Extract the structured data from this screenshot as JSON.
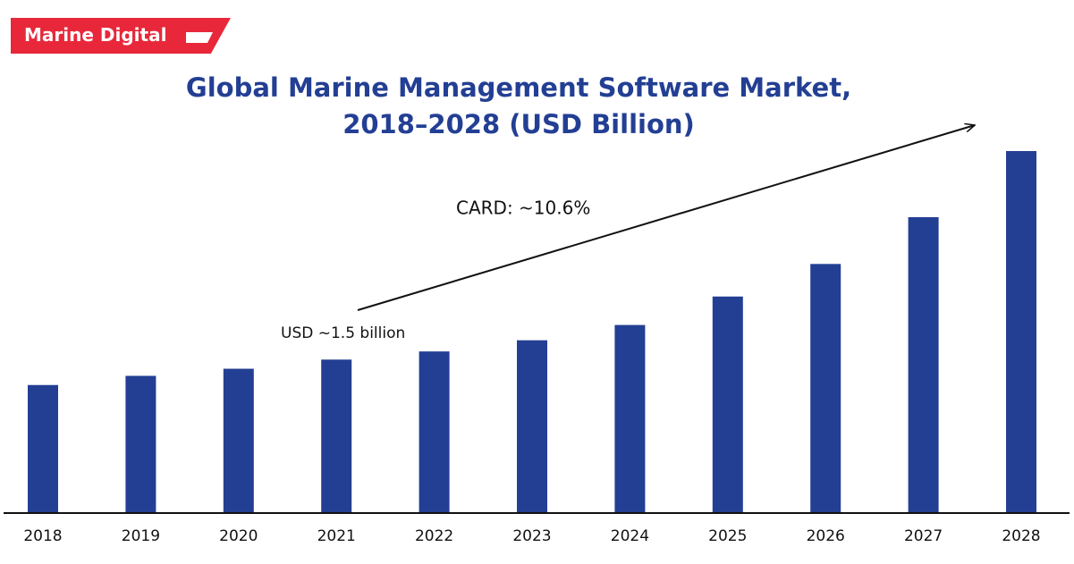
{
  "brand": "Marine Digital",
  "chart_data": {
    "type": "bar",
    "title": "Global Marine Management Software Market, 2018–2028 (USD Billion)",
    "annotations": [
      "CARD: ~10.6%",
      "USD ~1.5 billion"
    ],
    "categories": [
      "2018",
      "2019",
      "2020",
      "2021",
      "2022",
      "2023",
      "2024",
      "2025",
      "2026",
      "2027",
      "2028"
    ],
    "values": [
      1.25,
      1.34,
      1.41,
      1.5,
      1.58,
      1.69,
      1.84,
      2.12,
      2.44,
      2.9,
      3.55
    ],
    "color": "#233f94"
  }
}
